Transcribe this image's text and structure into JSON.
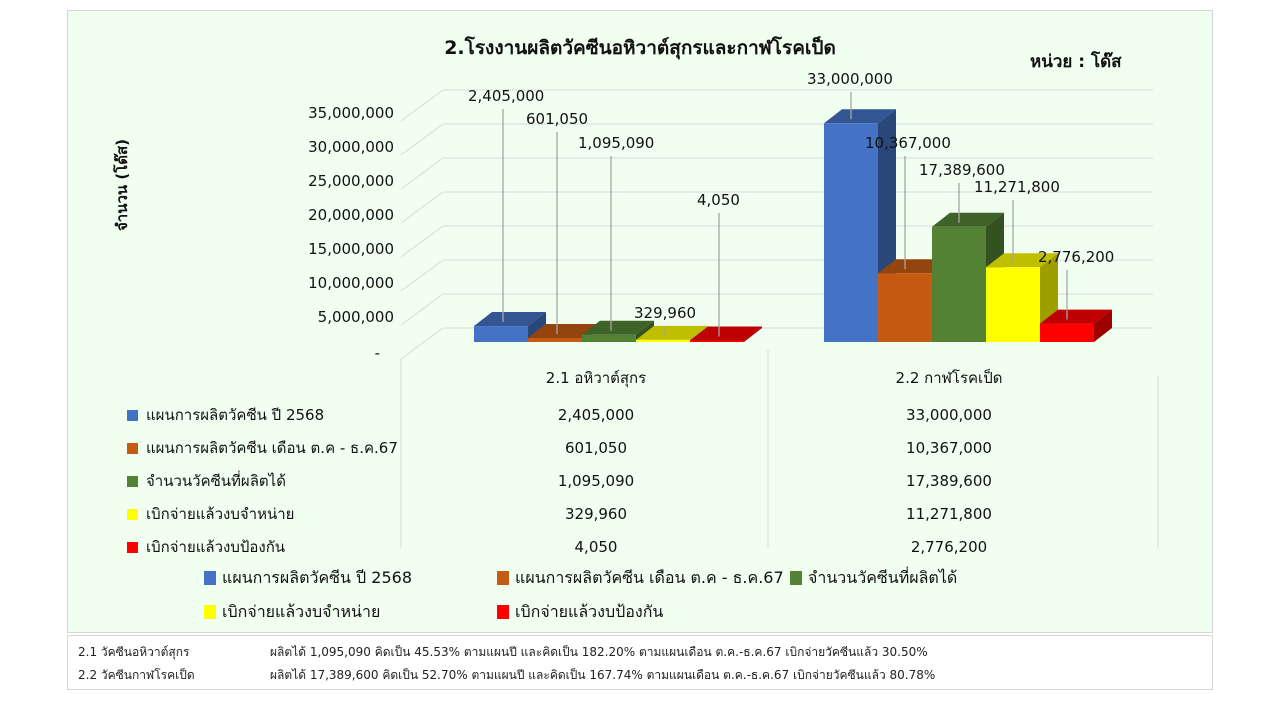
{
  "chart": {
    "title": "2.โรงงานผลิตวัคซีนอหิวาต์สุกรและกาฬโรคเป็ด",
    "unit_label": "หน่วย : โด๊ส",
    "y_axis_title": "จำนวน (โด๊ส)",
    "y_ticks": [
      "35,000,000",
      "30,000,000",
      "25,000,000",
      "20,000,000",
      "15,000,000",
      "10,000,000",
      "5,000,000",
      "-"
    ]
  },
  "chart_data": {
    "type": "bar",
    "subtype": "3d-clustered-column",
    "title": "2.โรงงานผลิตวัคซีนอหิวาต์สุกรและกาฬโรคเป็ด",
    "xlabel": "",
    "ylabel": "จำนวน (โด๊ส)",
    "unit": "หน่วย : โด๊ส",
    "ylim": [
      0,
      35000000
    ],
    "y_tick_step": 5000000,
    "grid": true,
    "legend_position": "bottom",
    "data_table": true,
    "categories": [
      "2.1 อหิวาต์สุกร",
      "2.2 กาฬโรคเป็ด"
    ],
    "series": [
      {
        "name": "แผนการผลิตวัคซีน ปี 2568",
        "color": "#4472c4",
        "values": [
          2405000,
          33000000
        ],
        "labels": [
          "2,405,000",
          "33,000,000"
        ]
      },
      {
        "name": "แผนการผลิตวัคซีน เดือน ต.ค - ธ.ค.67",
        "color": "#c55a11",
        "values": [
          601050,
          10367000
        ],
        "labels": [
          "601,050",
          "10,367,000"
        ]
      },
      {
        "name": "จำนวนวัคซีนที่ผลิตได้",
        "color": "#548235",
        "values": [
          1095090,
          17389600
        ],
        "labels": [
          "1,095,090",
          "17,389,600"
        ]
      },
      {
        "name": "เบิกจ่ายแล้วงบจำหน่าย",
        "color": "#ffff00",
        "values": [
          329960,
          11271800
        ],
        "labels": [
          "329,960",
          "11,271,800"
        ]
      },
      {
        "name": "เบิกจ่ายแล้วงบป้องกัน",
        "color": "#ff0000",
        "values": [
          4050,
          2776200
        ],
        "labels": [
          "4,050",
          "2,776,200"
        ]
      }
    ]
  },
  "table": {
    "headers": [
      "",
      "2.1 อหิวาต์สุกร",
      "2.2 กาฬโรคเป็ด"
    ],
    "rows": [
      {
        "label": "แผนการผลิตวัคซีน ปี 2568",
        "color": "#4472c4",
        "values": [
          "2,405,000",
          "33,000,000"
        ]
      },
      {
        "label": "แผนการผลิตวัคซีน เดือน ต.ค - ธ.ค.67",
        "color": "#c55a11",
        "values": [
          "601,050",
          "10,367,000"
        ]
      },
      {
        "label": "จำนวนวัคซีนที่ผลิตได้",
        "color": "#548235",
        "values": [
          "1,095,090",
          "17,389,600"
        ]
      },
      {
        "label": "เบิกจ่ายแล้วงบจำหน่าย",
        "color": "#ffff00",
        "values": [
          "329,960",
          "11,271,800"
        ]
      },
      {
        "label": "เบิกจ่ายแล้วงบป้องกัน",
        "color": "#ff0000",
        "values": [
          "4,050",
          "2,776,200"
        ]
      }
    ]
  },
  "legend": {
    "items": [
      {
        "label": "แผนการผลิตวัคซีน ปี 2568",
        "color": "#4472c4"
      },
      {
        "label": "แผนการผลิตวัคซีน เดือน ต.ค - ธ.ค.67",
        "color": "#c55a11"
      },
      {
        "label": "จำนวนวัคซีนที่ผลิตได้",
        "color": "#548235"
      },
      {
        "label": "เบิกจ่ายแล้วงบจำหน่าย",
        "color": "#ffff00"
      },
      {
        "label": "เบิกจ่ายแล้วงบป้องกัน",
        "color": "#ff0000"
      }
    ]
  },
  "notes": [
    {
      "name": "2.1 วัคซีนอหิวาต์สุกร",
      "text": "ผลิตได้  1,095,090  คิดเป็น  45.53%  ตามแผนปี  และคิดเป็น  182.20%  ตามแผนเดือน  ต.ค.-ธ.ค.67  เบิกจ่ายวัคซีนแล้ว  30.50%"
    },
    {
      "name": "2.2 วัคซีนกาฬโรคเป็ด",
      "text": "ผลิตได้  17,389,600  คิดเป็น  52.70%  ตามแผนปี  และคิดเป็น  167.74%  ตามแผนเดือน  ต.ค.-ธ.ค.67  เบิกจ่ายวัคซีนแล้ว  80.78%"
    }
  ]
}
